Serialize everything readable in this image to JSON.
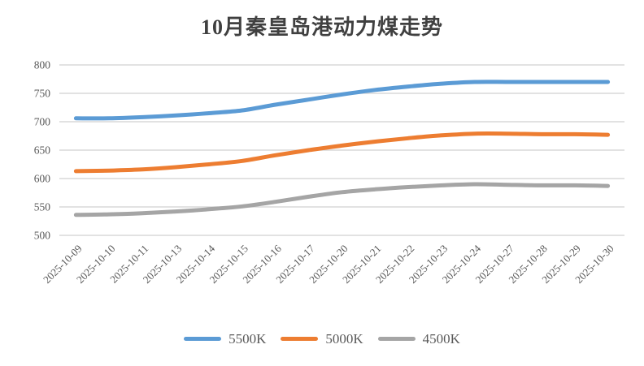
{
  "chart_data": {
    "type": "line",
    "title": "10月秦皇岛港动力煤走势",
    "categories": [
      "2025-10-09",
      "2025-10-10",
      "2025-10-11",
      "2025-10-13",
      "2025-10-14",
      "2025-10-15",
      "2025-10-16",
      "2025-10-17",
      "2025-10-20",
      "2025-10-21",
      "2025-10-22",
      "2025-10-23",
      "2025-10-24",
      "2025-10-27",
      "2025-10-28",
      "2025-10-29",
      "2025-10-30"
    ],
    "series": [
      {
        "name": "5500K",
        "color": "#5B9BD5",
        "values": [
          706,
          706,
          708,
          711,
          715,
          720,
          730,
          739,
          748,
          756,
          762,
          767,
          770,
          770,
          770,
          770,
          770
        ]
      },
      {
        "name": "5000K",
        "color": "#ED7D31",
        "values": [
          613,
          614,
          616,
          620,
          625,
          631,
          641,
          650,
          658,
          665,
          671,
          676,
          679,
          679,
          678,
          678,
          677
        ]
      },
      {
        "name": "4500K",
        "color": "#A5A5A5",
        "values": [
          536,
          537,
          539,
          542,
          546,
          551,
          559,
          568,
          576,
          581,
          585,
          588,
          590,
          589,
          588,
          588,
          587
        ]
      }
    ],
    "xlabel": "",
    "ylabel": "",
    "ylim": [
      500,
      800
    ],
    "yticks": [
      500,
      550,
      600,
      650,
      700,
      750,
      800
    ],
    "grid": true,
    "smoothed": true,
    "legend_position": "bottom-center",
    "colors": {
      "grid": "#D9D9D9",
      "axis_text": "#595959",
      "title_text": "#404040",
      "background": "#FFFFFF"
    }
  }
}
